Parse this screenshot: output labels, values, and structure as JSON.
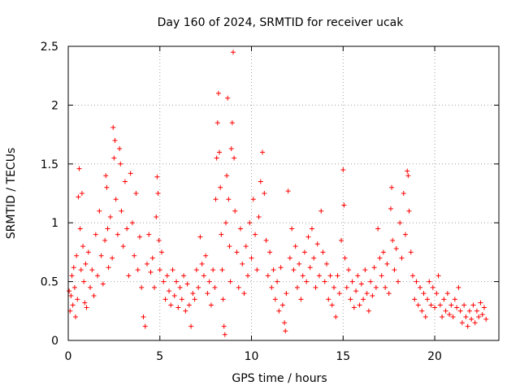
{
  "chart_data": {
    "type": "scatter",
    "title": "Day 160 of 2024, SRMTID for receiver ucak",
    "xlabel": "GPS time / hours",
    "ylabel": "SRMTID / TECUs",
    "xlim": [
      0,
      23.5
    ],
    "ylim": [
      0,
      2.5
    ],
    "xticks": [
      0,
      5,
      10,
      15,
      20
    ],
    "xtick_labels": [
      "0",
      "5",
      "10",
      "15",
      "20"
    ],
    "yticks": [
      0,
      0.5,
      1,
      1.5,
      2,
      2.5
    ],
    "ytick_labels": [
      "0",
      "0.5",
      "1",
      "1.5",
      "2",
      "2.5"
    ],
    "grid": true,
    "marker": "+",
    "color": "#ff0000",
    "series": [
      {
        "name": "SRMTID",
        "points": [
          [
            0.05,
            0.42
          ],
          [
            0.1,
            0.25
          ],
          [
            0.15,
            0.38
          ],
          [
            0.2,
            0.55
          ],
          [
            0.25,
            0.3
          ],
          [
            0.3,
            0.62
          ],
          [
            0.35,
            0.45
          ],
          [
            0.4,
            0.2
          ],
          [
            0.45,
            0.72
          ],
          [
            0.5,
            0.35
          ],
          [
            0.55,
            1.22
          ],
          [
            0.6,
            1.46
          ],
          [
            0.65,
            0.95
          ],
          [
            0.7,
            0.6
          ],
          [
            0.75,
            1.25
          ],
          [
            0.8,
            0.8
          ],
          [
            0.85,
            0.5
          ],
          [
            0.9,
            0.32
          ],
          [
            0.95,
            0.65
          ],
          [
            1.0,
            0.28
          ],
          [
            1.1,
            0.75
          ],
          [
            1.2,
            0.45
          ],
          [
            1.3,
            0.6
          ],
          [
            1.4,
            0.38
          ],
          [
            1.5,
            0.9
          ],
          [
            1.6,
            0.55
          ],
          [
            1.7,
            1.1
          ],
          [
            1.8,
            0.72
          ],
          [
            1.9,
            0.48
          ],
          [
            2.0,
            0.85
          ],
          [
            2.05,
            1.4
          ],
          [
            2.1,
            1.3
          ],
          [
            2.15,
            0.95
          ],
          [
            2.2,
            0.62
          ],
          [
            2.3,
            1.05
          ],
          [
            2.4,
            0.7
          ],
          [
            2.45,
            1.81
          ],
          [
            2.5,
            1.55
          ],
          [
            2.55,
            1.7
          ],
          [
            2.6,
            1.2
          ],
          [
            2.7,
            0.9
          ],
          [
            2.8,
            1.63
          ],
          [
            2.85,
            1.5
          ],
          [
            2.9,
            1.1
          ],
          [
            3.0,
            0.8
          ],
          [
            3.1,
            1.35
          ],
          [
            3.2,
            0.95
          ],
          [
            3.3,
            0.55
          ],
          [
            3.4,
            1.42
          ],
          [
            3.5,
            1.0
          ],
          [
            3.6,
            0.72
          ],
          [
            3.7,
            1.25
          ],
          [
            3.8,
            0.6
          ],
          [
            3.9,
            0.88
          ],
          [
            4.0,
            0.45
          ],
          [
            4.1,
            0.2
          ],
          [
            4.2,
            0.12
          ],
          [
            4.3,
            0.65
          ],
          [
            4.4,
            0.9
          ],
          [
            4.5,
            0.58
          ],
          [
            4.6,
            0.7
          ],
          [
            4.7,
            0.45
          ],
          [
            4.8,
            1.05
          ],
          [
            4.85,
            1.39
          ],
          [
            4.9,
            1.25
          ],
          [
            4.95,
            0.85
          ],
          [
            5.0,
            0.6
          ],
          [
            5.1,
            0.75
          ],
          [
            5.2,
            0.5
          ],
          [
            5.3,
            0.35
          ],
          [
            5.4,
            0.55
          ],
          [
            5.5,
            0.42
          ],
          [
            5.6,
            0.3
          ],
          [
            5.7,
            0.6
          ],
          [
            5.8,
            0.38
          ],
          [
            5.9,
            0.5
          ],
          [
            6.0,
            0.28
          ],
          [
            6.1,
            0.45
          ],
          [
            6.2,
            0.35
          ],
          [
            6.3,
            0.55
          ],
          [
            6.4,
            0.25
          ],
          [
            6.5,
            0.48
          ],
          [
            6.6,
            0.3
          ],
          [
            6.7,
            0.12
          ],
          [
            6.8,
            0.4
          ],
          [
            6.9,
            0.35
          ],
          [
            7.0,
            0.6
          ],
          [
            7.1,
            0.45
          ],
          [
            7.2,
            0.88
          ],
          [
            7.3,
            0.65
          ],
          [
            7.4,
            0.55
          ],
          [
            7.5,
            0.72
          ],
          [
            7.6,
            0.4
          ],
          [
            7.7,
            0.5
          ],
          [
            7.8,
            0.3
          ],
          [
            7.9,
            0.6
          ],
          [
            8.0,
            0.45
          ],
          [
            8.05,
            1.2
          ],
          [
            8.1,
            1.55
          ],
          [
            8.15,
            1.85
          ],
          [
            8.2,
            2.1
          ],
          [
            8.25,
            1.6
          ],
          [
            8.3,
            1.3
          ],
          [
            8.35,
            0.9
          ],
          [
            8.4,
            0.6
          ],
          [
            8.45,
            0.35
          ],
          [
            8.5,
            0.12
          ],
          [
            8.55,
            0.05
          ],
          [
            8.6,
            1.0
          ],
          [
            8.65,
            1.4
          ],
          [
            8.7,
            2.06
          ],
          [
            8.75,
            1.2
          ],
          [
            8.8,
            0.8
          ],
          [
            8.85,
            0.5
          ],
          [
            8.9,
            1.63
          ],
          [
            8.95,
            1.85
          ],
          [
            9.0,
            2.45
          ],
          [
            9.05,
            1.55
          ],
          [
            9.1,
            1.1
          ],
          [
            9.2,
            0.75
          ],
          [
            9.3,
            0.45
          ],
          [
            9.4,
            0.95
          ],
          [
            9.5,
            0.65
          ],
          [
            9.6,
            0.4
          ],
          [
            9.7,
            0.8
          ],
          [
            9.8,
            0.55
          ],
          [
            9.9,
            1.0
          ],
          [
            10.0,
            0.7
          ],
          [
            10.1,
            1.2
          ],
          [
            10.2,
            0.9
          ],
          [
            10.3,
            0.6
          ],
          [
            10.4,
            1.05
          ],
          [
            10.5,
            1.35
          ],
          [
            10.6,
            1.6
          ],
          [
            10.7,
            1.25
          ],
          [
            10.8,
            0.85
          ],
          [
            10.9,
            0.55
          ],
          [
            11.0,
            0.75
          ],
          [
            11.1,
            0.45
          ],
          [
            11.2,
            0.6
          ],
          [
            11.3,
            0.35
          ],
          [
            11.4,
            0.5
          ],
          [
            11.5,
            0.25
          ],
          [
            11.6,
            0.62
          ],
          [
            11.7,
            0.3
          ],
          [
            11.8,
            0.15
          ],
          [
            11.85,
            0.08
          ],
          [
            11.9,
            0.4
          ],
          [
            12.0,
            1.27
          ],
          [
            12.1,
            0.7
          ],
          [
            12.2,
            0.95
          ],
          [
            12.3,
            0.6
          ],
          [
            12.4,
            0.8
          ],
          [
            12.5,
            0.45
          ],
          [
            12.6,
            0.65
          ],
          [
            12.7,
            0.35
          ],
          [
            12.8,
            0.55
          ],
          [
            12.9,
            0.75
          ],
          [
            13.0,
            0.5
          ],
          [
            13.1,
            0.88
          ],
          [
            13.2,
            0.62
          ],
          [
            13.3,
            0.95
          ],
          [
            13.4,
            0.7
          ],
          [
            13.5,
            0.45
          ],
          [
            13.6,
            0.82
          ],
          [
            13.7,
            0.55
          ],
          [
            13.8,
            1.1
          ],
          [
            13.9,
            0.75
          ],
          [
            14.0,
            0.5
          ],
          [
            14.1,
            0.65
          ],
          [
            14.2,
            0.35
          ],
          [
            14.3,
            0.55
          ],
          [
            14.4,
            0.3
          ],
          [
            14.5,
            0.45
          ],
          [
            14.6,
            0.2
          ],
          [
            14.7,
            0.55
          ],
          [
            14.8,
            0.4
          ],
          [
            14.9,
            0.85
          ],
          [
            15.0,
            1.45
          ],
          [
            15.05,
            1.15
          ],
          [
            15.1,
            0.7
          ],
          [
            15.2,
            0.45
          ],
          [
            15.3,
            0.6
          ],
          [
            15.4,
            0.35
          ],
          [
            15.5,
            0.5
          ],
          [
            15.6,
            0.28
          ],
          [
            15.7,
            0.42
          ],
          [
            15.8,
            0.55
          ],
          [
            15.9,
            0.3
          ],
          [
            16.0,
            0.48
          ],
          [
            16.1,
            0.35
          ],
          [
            16.2,
            0.6
          ],
          [
            16.3,
            0.4
          ],
          [
            16.4,
            0.25
          ],
          [
            16.5,
            0.5
          ],
          [
            16.6,
            0.38
          ],
          [
            16.7,
            0.62
          ],
          [
            16.8,
            0.45
          ],
          [
            16.9,
            0.95
          ],
          [
            17.0,
            0.7
          ],
          [
            17.1,
            0.55
          ],
          [
            17.2,
            0.75
          ],
          [
            17.3,
            0.45
          ],
          [
            17.4,
            0.65
          ],
          [
            17.5,
            0.4
          ],
          [
            17.6,
            1.12
          ],
          [
            17.65,
            1.3
          ],
          [
            17.7,
            0.85
          ],
          [
            17.8,
            0.6
          ],
          [
            17.9,
            0.78
          ],
          [
            18.0,
            0.5
          ],
          [
            18.1,
            1.0
          ],
          [
            18.2,
            0.7
          ],
          [
            18.3,
            1.25
          ],
          [
            18.4,
            0.9
          ],
          [
            18.5,
            1.44
          ],
          [
            18.55,
            1.4
          ],
          [
            18.6,
            1.1
          ],
          [
            18.7,
            0.75
          ],
          [
            18.8,
            0.55
          ],
          [
            18.9,
            0.35
          ],
          [
            19.0,
            0.5
          ],
          [
            19.1,
            0.3
          ],
          [
            19.2,
            0.45
          ],
          [
            19.3,
            0.25
          ],
          [
            19.4,
            0.4
          ],
          [
            19.5,
            0.2
          ],
          [
            19.6,
            0.35
          ],
          [
            19.7,
            0.5
          ],
          [
            19.8,
            0.3
          ],
          [
            19.9,
            0.45
          ],
          [
            20.0,
            0.28
          ],
          [
            20.1,
            0.4
          ],
          [
            20.2,
            0.55
          ],
          [
            20.3,
            0.3
          ],
          [
            20.4,
            0.2
          ],
          [
            20.5,
            0.35
          ],
          [
            20.6,
            0.25
          ],
          [
            20.7,
            0.4
          ],
          [
            20.8,
            0.22
          ],
          [
            20.9,
            0.3
          ],
          [
            21.0,
            0.2
          ],
          [
            21.1,
            0.35
          ],
          [
            21.2,
            0.28
          ],
          [
            21.3,
            0.45
          ],
          [
            21.4,
            0.25
          ],
          [
            21.5,
            0.15
          ],
          [
            21.6,
            0.3
          ],
          [
            21.7,
            0.2
          ],
          [
            21.8,
            0.12
          ],
          [
            21.9,
            0.25
          ],
          [
            22.0,
            0.18
          ],
          [
            22.1,
            0.3
          ],
          [
            22.2,
            0.15
          ],
          [
            22.3,
            0.25
          ],
          [
            22.4,
            0.2
          ],
          [
            22.5,
            0.32
          ],
          [
            22.6,
            0.22
          ],
          [
            22.7,
            0.28
          ],
          [
            22.8,
            0.18
          ]
        ]
      }
    ]
  }
}
